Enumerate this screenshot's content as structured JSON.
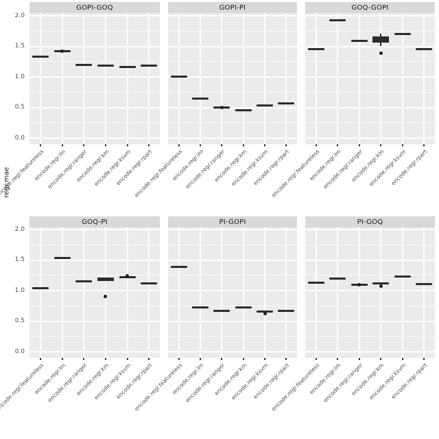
{
  "colors": {
    "panel_bg": "#ebebeb",
    "strip_bg": "#d9d9d9",
    "gridline": "#ffffff",
    "mark": "#2b2b2b",
    "outlier": "#1f1f1f",
    "axis_text": "#4d4d4d",
    "strip_text": "#141414"
  },
  "chart_data": {
    "type": "bar",
    "subtype": "faceted-boxplot",
    "facet_grid": {
      "rows": 2,
      "cols": 3
    },
    "ylabel": "regr.mae",
    "xlabel": "",
    "ylim": [
      0,
      2
    ],
    "grid": "on",
    "y_major_ticks": [
      0,
      0.5,
      1,
      1.5,
      2
    ],
    "y_minor_ticks": [
      0.25,
      0.75,
      1.25,
      1.75
    ],
    "y_tick_labels": [
      "0.0",
      "0.5",
      "1.0",
      "1.5",
      "2.0"
    ],
    "categories": [
      "encode.regr.featureless",
      "encode.regr.lm",
      "encode.regr.ranger",
      "encode.regr.km",
      "encode.regr.ksvm",
      "encode.regr.rpart"
    ],
    "facets": [
      {
        "title": "GOPI-GOQ",
        "row": 0,
        "col": 0,
        "medians": [
          1.33,
          1.42,
          1.2,
          1.18,
          1.16,
          1.19
        ],
        "boxes": [
          null,
          null,
          null,
          null,
          null,
          null
        ],
        "whiskers": [
          null,
          null,
          null,
          null,
          null,
          null
        ],
        "outliers": [
          [],
          [
            1.42
          ],
          [],
          [],
          [],
          []
        ]
      },
      {
        "title": "GOPI-PI",
        "row": 0,
        "col": 1,
        "medians": [
          1.01,
          0.65,
          0.5,
          0.46,
          0.53,
          0.57
        ],
        "boxes": [
          null,
          null,
          null,
          null,
          null,
          null
        ],
        "whiskers": [
          null,
          null,
          null,
          null,
          null,
          null
        ],
        "outliers": [
          [],
          [],
          [
            0.5
          ],
          [],
          [],
          []
        ]
      },
      {
        "title": "GOQ-GOPI",
        "row": 0,
        "col": 2,
        "medians": [
          1.45,
          1.93,
          1.59,
          1.61,
          1.7,
          1.46
        ],
        "boxes": [
          null,
          null,
          null,
          [
            1.56,
            1.66
          ],
          null,
          null
        ],
        "whiskers": [
          null,
          null,
          null,
          [
            1.51,
            1.71
          ],
          null,
          null
        ],
        "outliers": [
          [],
          [],
          [],
          [
            1.39
          ],
          [],
          []
        ]
      },
      {
        "title": "GOQ-PI",
        "row": 1,
        "col": 0,
        "medians": [
          1.04,
          1.53,
          1.15,
          1.18,
          1.22,
          1.12
        ],
        "boxes": [
          null,
          null,
          null,
          [
            1.16,
            1.21
          ],
          null,
          null
        ],
        "whiskers": [
          null,
          null,
          null,
          null,
          null,
          null
        ],
        "outliers": [
          [],
          [],
          [],
          [
            0.91
          ],
          [
            1.24
          ],
          []
        ]
      },
      {
        "title": "PI-GOPI",
        "row": 1,
        "col": 1,
        "medians": [
          1.39,
          0.72,
          0.67,
          0.72,
          0.66,
          0.67
        ],
        "boxes": [
          null,
          null,
          null,
          null,
          null,
          null
        ],
        "whiskers": [
          null,
          null,
          null,
          null,
          null,
          null
        ],
        "outliers": [
          [],
          [],
          [],
          [],
          [
            0.62
          ],
          []
        ]
      },
      {
        "title": "PI-GOQ",
        "row": 1,
        "col": 2,
        "medians": [
          1.13,
          1.2,
          1.09,
          1.12,
          1.23,
          1.11
        ],
        "boxes": [
          null,
          null,
          null,
          null,
          null,
          null
        ],
        "whiskers": [
          null,
          null,
          null,
          null,
          null,
          null
        ],
        "outliers": [
          [],
          [],
          [
            1.09
          ],
          [
            1.07
          ],
          [],
          []
        ]
      }
    ]
  }
}
